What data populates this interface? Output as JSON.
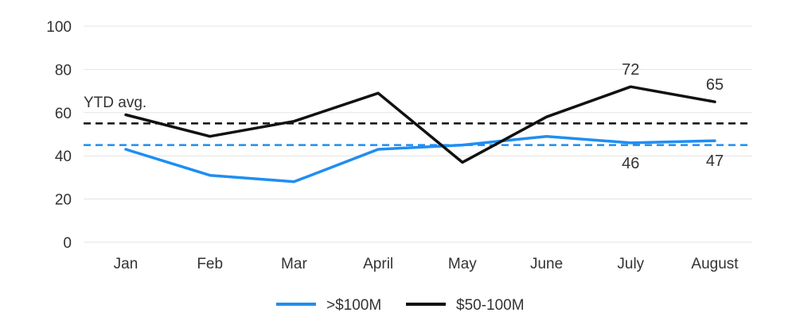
{
  "chart_data": {
    "type": "line",
    "title": "",
    "xlabel": "",
    "ylabel": "",
    "categories": [
      "Jan",
      "Feb",
      "Mar",
      "April",
      "May",
      "June",
      "July",
      "August"
    ],
    "ylim": [
      0,
      100
    ],
    "yticks": [
      0,
      20,
      40,
      60,
      80,
      100
    ],
    "grid": true,
    "legend_position": "bottom",
    "series": [
      {
        "name": ">$100M",
        "color": "#1f8ef1",
        "values": [
          43,
          31,
          28,
          43,
          45,
          49,
          46,
          47
        ],
        "avg": 45,
        "labels": [
          {
            "index": 6,
            "text": "46"
          },
          {
            "index": 7,
            "text": "47"
          }
        ]
      },
      {
        "name": "$50-100M",
        "color": "#111111",
        "values": [
          59,
          49,
          56,
          69,
          37,
          58,
          72,
          65
        ],
        "avg": 55,
        "labels": [
          {
            "index": 6,
            "text": "72"
          },
          {
            "index": 7,
            "text": "65"
          }
        ]
      }
    ],
    "annotation": "YTD avg."
  }
}
